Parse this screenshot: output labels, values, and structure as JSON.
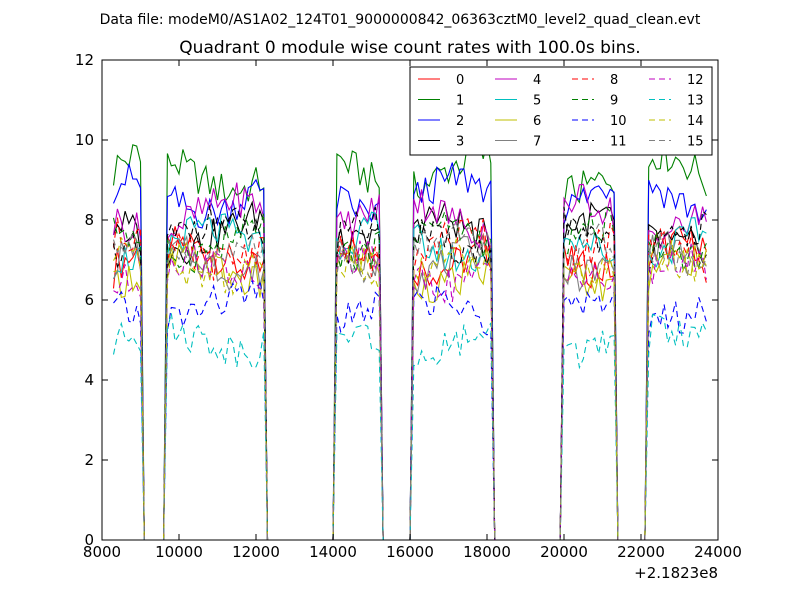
{
  "chart_data": {
    "type": "line",
    "suptitle": "Data file: modeM0/AS1A02_124T01_9000000842_06363cztM0_level2_quad_clean.evt",
    "title": "Quadrant 0 module wise count rates with 100.0s bins.",
    "xlabel": "",
    "ylabel": "",
    "x_offset_label": "+2.1823e8",
    "xlim": [
      8000,
      24000
    ],
    "ylim": [
      0,
      12
    ],
    "x_ticks": [
      8000,
      10000,
      12000,
      14000,
      16000,
      18000,
      20000,
      22000,
      24000
    ],
    "x_tick_labels": [
      "8000",
      "10000",
      "12000",
      "14000",
      "16000",
      "18000",
      "20000",
      "22000",
      "24000"
    ],
    "y_ticks": [
      0,
      2,
      4,
      6,
      8,
      10,
      12
    ],
    "y_tick_labels": [
      "0",
      "2",
      "4",
      "6",
      "8",
      "10",
      "12"
    ],
    "grid": false,
    "legend_position": "top-right",
    "x_step": 100,
    "segments": [
      {
        "start": 8300,
        "end": 9000
      },
      {
        "start": 9700,
        "end": 12250
      },
      {
        "start": 14050,
        "end": 15250
      },
      {
        "start": 16050,
        "end": 18100
      },
      {
        "start": 19950,
        "end": 21300
      },
      {
        "start": 22200,
        "end": 23700
      }
    ],
    "series": [
      {
        "name": "0",
        "level": 7.1,
        "color": "#ff0000",
        "dash": "solid"
      },
      {
        "name": "1",
        "level": 9.2,
        "color": "#008000",
        "dash": "solid"
      },
      {
        "name": "2",
        "level": 8.6,
        "color": "#0000ff",
        "dash": "solid"
      },
      {
        "name": "3",
        "level": 7.7,
        "color": "#000000",
        "dash": "solid"
      },
      {
        "name": "4",
        "level": 8.1,
        "color": "#bf00bf",
        "dash": "solid"
      },
      {
        "name": "5",
        "level": 7.4,
        "color": "#00bfbf",
        "dash": "solid"
      },
      {
        "name": "6",
        "level": 6.7,
        "color": "#bfbf00",
        "dash": "solid"
      },
      {
        "name": "7",
        "level": 7.0,
        "color": "#808080",
        "dash": "solid"
      },
      {
        "name": "8",
        "level": 7.3,
        "color": "#ff0000",
        "dash": "dashed"
      },
      {
        "name": "9",
        "level": 7.5,
        "color": "#008000",
        "dash": "dashed"
      },
      {
        "name": "10",
        "level": 5.8,
        "color": "#0000ff",
        "dash": "dashed"
      },
      {
        "name": "11",
        "level": 7.6,
        "color": "#000000",
        "dash": "dashed"
      },
      {
        "name": "12",
        "level": 6.7,
        "color": "#bf00bf",
        "dash": "dashed"
      },
      {
        "name": "13",
        "level": 5.0,
        "color": "#00bfbf",
        "dash": "dashed"
      },
      {
        "name": "14",
        "level": 6.9,
        "color": "#bfbf00",
        "dash": "dashed"
      },
      {
        "name": "15",
        "level": 7.2,
        "color": "#808080",
        "dash": "dashed"
      }
    ]
  }
}
